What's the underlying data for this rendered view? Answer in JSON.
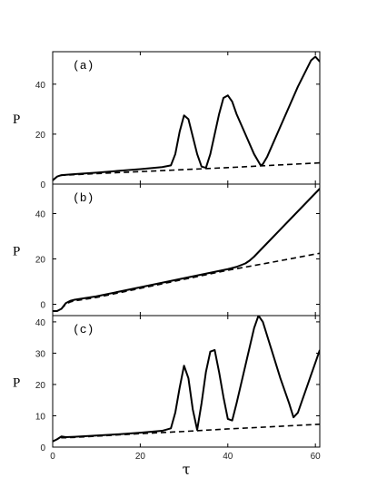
{
  "chart_data": [
    {
      "type": "line",
      "panel_label": "(a)",
      "ylabel": "P",
      "xlim": [
        0,
        61
      ],
      "ylim": [
        0,
        53
      ],
      "yticks": [
        0,
        20,
        40
      ],
      "x_tick_labels_shown": false,
      "series": [
        {
          "style": "solid",
          "x": [
            0,
            1,
            2,
            5,
            10,
            15,
            20,
            25,
            27,
            28,
            29,
            30,
            31,
            32,
            33,
            34,
            35,
            36,
            37,
            38,
            39,
            40,
            41,
            42,
            44,
            46,
            47.5,
            48,
            49,
            50,
            52,
            54,
            56,
            58,
            59,
            60,
            61
          ],
          "y": [
            1.5,
            3.0,
            3.6,
            4.0,
            4.6,
            5.3,
            6.0,
            6.8,
            7.5,
            12,
            21,
            27.5,
            26,
            19,
            12,
            7,
            6.5,
            12,
            20,
            28,
            34.5,
            35.5,
            33,
            28,
            20,
            12,
            7.5,
            8,
            11,
            15,
            23,
            31,
            39,
            46,
            49.5,
            51,
            49
          ]
        },
        {
          "style": "dashed",
          "x": [
            0,
            1,
            2,
            10,
            20,
            30,
            40,
            50,
            61
          ],
          "y": [
            1.5,
            3.0,
            3.5,
            4.2,
            5.0,
            5.8,
            6.6,
            7.5,
            8.5
          ]
        }
      ]
    },
    {
      "type": "line",
      "panel_label": "(b)",
      "ylabel": "P",
      "xlim": [
        0,
        61
      ],
      "ylim": [
        -5,
        53
      ],
      "yticks": [
        0,
        20,
        40
      ],
      "x_tick_labels_shown": false,
      "series": [
        {
          "style": "solid",
          "x": [
            0,
            1,
            2,
            3,
            4,
            5,
            10,
            20,
            30,
            40,
            42,
            44,
            45,
            46,
            47,
            48,
            50,
            55,
            60,
            61
          ],
          "y": [
            -3,
            -3,
            -2,
            0.5,
            1.5,
            2.0,
            3.5,
            7.5,
            11.5,
            15.5,
            16.5,
            18,
            19.3,
            21,
            23,
            25,
            29,
            39,
            49,
            51
          ]
        },
        {
          "style": "dashed",
          "x": [
            0,
            1,
            2,
            3,
            4,
            5,
            10,
            20,
            30,
            40,
            50,
            61
          ],
          "y": [
            -3,
            -3,
            -2,
            0,
            1.0,
            1.5,
            3.0,
            7.0,
            11.0,
            15.0,
            18.5,
            22.5
          ]
        }
      ]
    },
    {
      "type": "line",
      "panel_label": "(c)",
      "ylabel": "P",
      "xlabel": "τ",
      "xlim": [
        0,
        61
      ],
      "ylim": [
        0,
        42
      ],
      "yticks": [
        0,
        10,
        20,
        30,
        40
      ],
      "xticks": [
        0,
        20,
        40,
        60
      ],
      "series": [
        {
          "style": "solid",
          "x": [
            0,
            1,
            2,
            3,
            5,
            10,
            15,
            20,
            25,
            27,
            28,
            29,
            30,
            31,
            32,
            33,
            34,
            35,
            36,
            37,
            38,
            39,
            40,
            41,
            42,
            43,
            44,
            45,
            46,
            47,
            48,
            50,
            52,
            54,
            55,
            56,
            57,
            58,
            59,
            60,
            61
          ],
          "y": [
            1.8,
            2.5,
            3.4,
            3.2,
            3.3,
            3.7,
            4.1,
            4.6,
            5.2,
            6.0,
            11,
            19,
            26,
            22,
            12,
            5.5,
            14,
            24,
            30.5,
            31,
            24,
            16,
            9,
            8.5,
            14,
            20,
            26,
            32,
            38,
            42,
            40,
            31,
            22,
            14,
            9.5,
            11,
            15,
            19,
            23,
            27,
            31
          ]
        },
        {
          "style": "dashed",
          "x": [
            0,
            1,
            2,
            3,
            5,
            10,
            20,
            30,
            40,
            50,
            61
          ],
          "y": [
            1.8,
            2.5,
            3.0,
            3.0,
            3.1,
            3.5,
            4.3,
            5.0,
            5.8,
            6.5,
            7.3
          ]
        }
      ]
    }
  ]
}
